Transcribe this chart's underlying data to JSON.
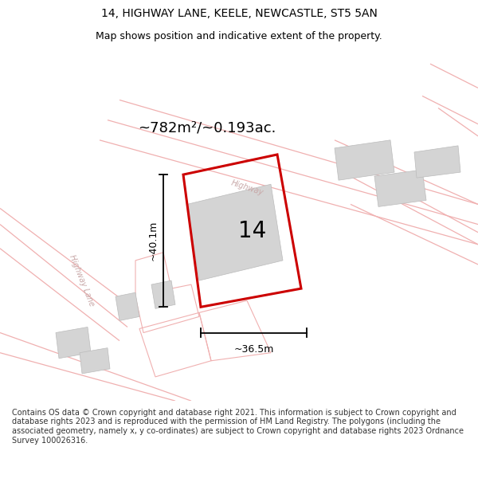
{
  "title_line1": "14, HIGHWAY LANE, KEELE, NEWCASTLE, ST5 5AN",
  "title_line2": "Map shows position and indicative extent of the property.",
  "area_text": "~782m²/~0.193ac.",
  "number_label": "14",
  "dim_width": "~36.5m",
  "dim_height": "~40.1m",
  "road_label1": "Highway Lane",
  "road_label2": "Highway",
  "footer_text": "Contains OS data © Crown copyright and database right 2021. This information is subject to Crown copyright and database rights 2023 and is reproduced with the permission of HM Land Registry. The polygons (including the associated geometry, namely x, y co-ordinates) are subject to Crown copyright and database rights 2023 Ordnance Survey 100026316.",
  "bg_color": "#ffffff",
  "map_bg": "#ffffff",
  "road_line_color": "#f0b0b0",
  "building_color": "#d4d4d4",
  "building_edge": "#bbbbbb",
  "property_color": "#cc0000",
  "dim_color": "#000000",
  "text_color": "#000000",
  "title_color": "#000000",
  "footer_color": "#333333",
  "road_label_color": "#c8a8a8"
}
